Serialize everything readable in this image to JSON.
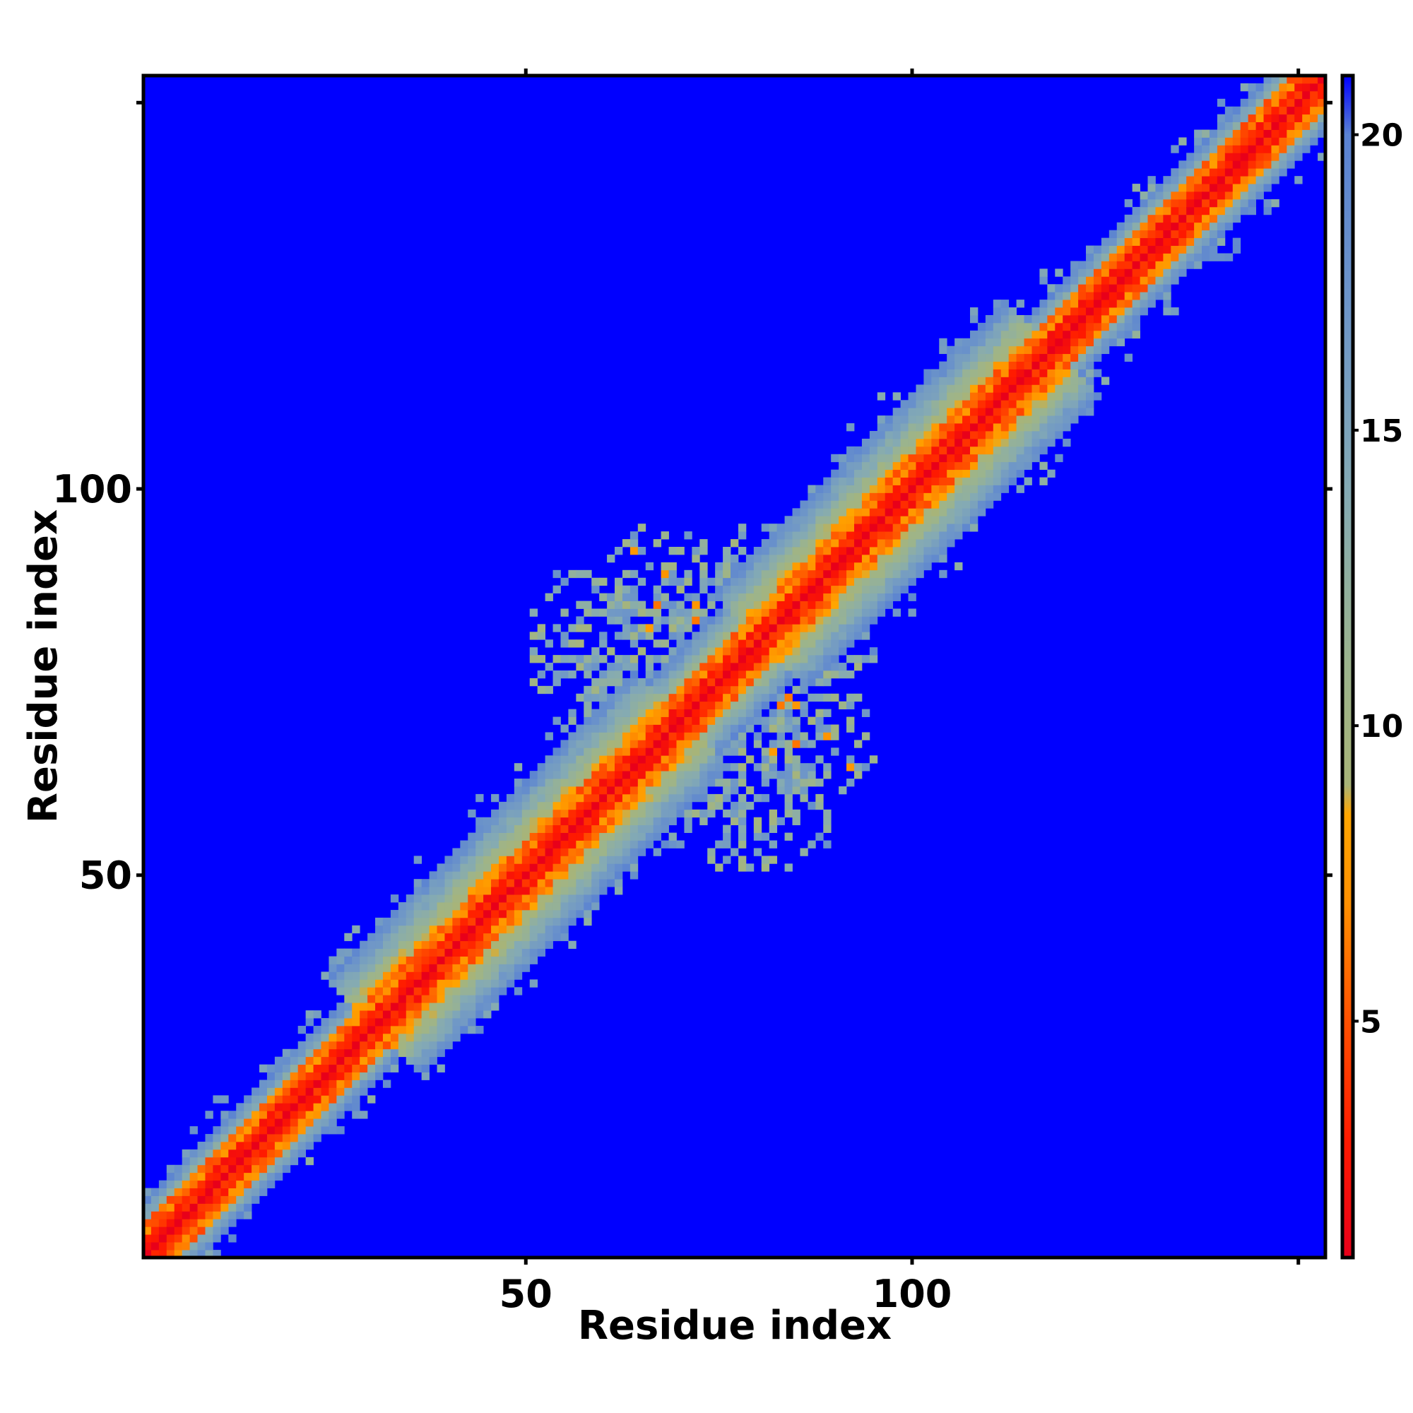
{
  "chart_data": {
    "type": "heatmap",
    "title": "",
    "xlabel": "Residue index",
    "ylabel": "Residue index",
    "n_residues": 153,
    "xlim": [
      1,
      153
    ],
    "ylim": [
      1,
      153
    ],
    "x_ticks": [
      50,
      100
    ],
    "y_ticks": [
      50,
      100
    ],
    "colorbar": {
      "range": [
        1,
        21
      ],
      "ticks": [
        5,
        10,
        15,
        20
      ],
      "stops": [
        {
          "value": 1,
          "color": "#e8001a"
        },
        {
          "value": 3,
          "color": "#ff1a00"
        },
        {
          "value": 5,
          "color": "#ff5000"
        },
        {
          "value": 7,
          "color": "#ff9000"
        },
        {
          "value": 8.5,
          "color": "#ffa500"
        },
        {
          "value": 9,
          "color": "#a8b478"
        },
        {
          "value": 11,
          "color": "#9cb48c"
        },
        {
          "value": 14,
          "color": "#84aab4"
        },
        {
          "value": 17,
          "color": "#6e96c8"
        },
        {
          "value": 20,
          "color": "#5a82d2"
        },
        {
          "value": 21,
          "color": "#0000ff"
        }
      ]
    },
    "background_value": 21,
    "colors": {
      "background": "#0000ff",
      "frame": "#000000"
    },
    "structure": {
      "diagonal_band": [
        {
          "from": 1,
          "to": 30,
          "half_width": 7
        },
        {
          "from": 30,
          "to": 70,
          "half_width": 12
        },
        {
          "from": 70,
          "to": 80,
          "half_width": 9
        },
        {
          "from": 80,
          "to": 118,
          "half_width": 12
        },
        {
          "from": 118,
          "to": 153,
          "half_width": 7
        }
      ],
      "off_diagonal_contacts": {
        "i_range": [
          50,
          92
        ],
        "j_range": [
          63,
          96
        ],
        "typical_value": 12
      }
    }
  }
}
